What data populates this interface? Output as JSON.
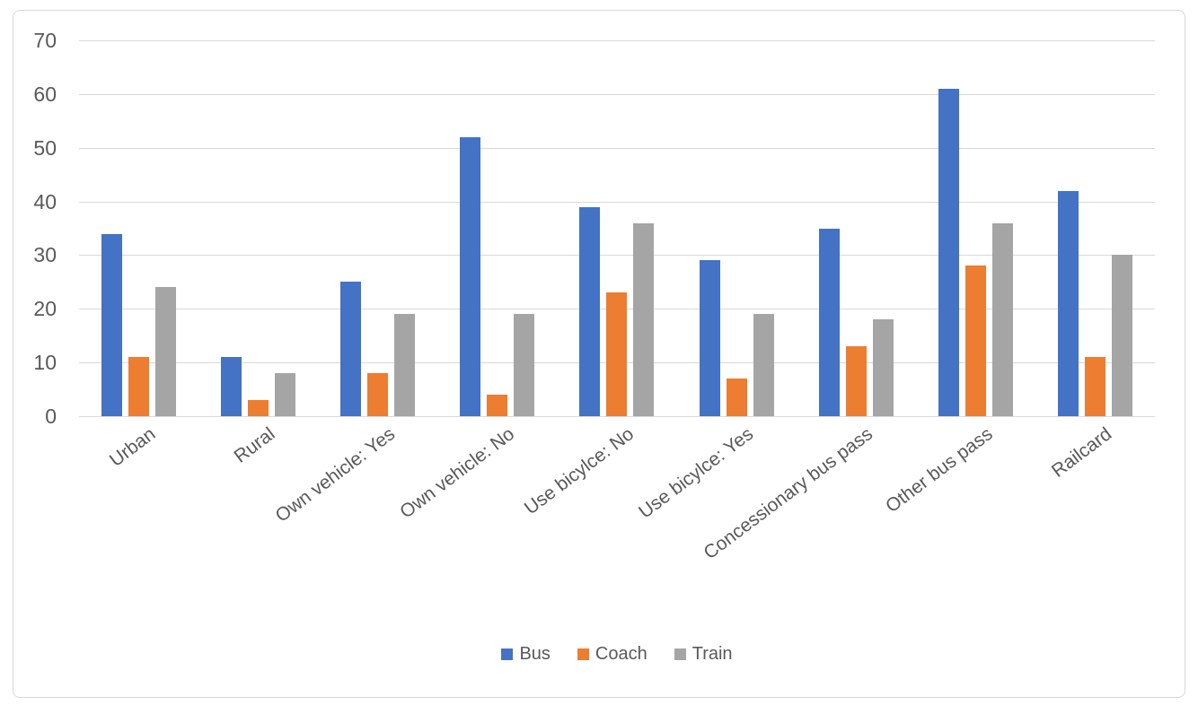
{
  "chart_data": {
    "type": "bar",
    "title": "",
    "xlabel": "",
    "ylabel": "",
    "categories": [
      "Urban",
      "Rural",
      "Own vehicle: Yes",
      "Own vehicle: No",
      "Use bicylce: No",
      "Use bicylce: Yes",
      "Concessionary bus pass",
      "Other bus pass",
      "Railcard"
    ],
    "series": [
      {
        "name": "Bus",
        "color": "#4472C4",
        "values": [
          34,
          11,
          25,
          52,
          39,
          29,
          35,
          61,
          42
        ]
      },
      {
        "name": "Coach",
        "color": "#ED7D31",
        "values": [
          11,
          3,
          8,
          4,
          23,
          7,
          13,
          28,
          11
        ]
      },
      {
        "name": "Train",
        "color": "#A5A5A5",
        "values": [
          24,
          8,
          19,
          19,
          36,
          19,
          18,
          36,
          30
        ]
      }
    ],
    "ylim": [
      0,
      70
    ],
    "yticks": [
      0,
      10,
      20,
      30,
      40,
      50,
      60,
      70
    ],
    "grid": true,
    "legend_position": "bottom"
  },
  "styles": {
    "axis_text_color": "#595959",
    "gridline_color": "#d9d9d9",
    "frame_border_color": "#d8d8d8",
    "background": "#ffffff"
  }
}
